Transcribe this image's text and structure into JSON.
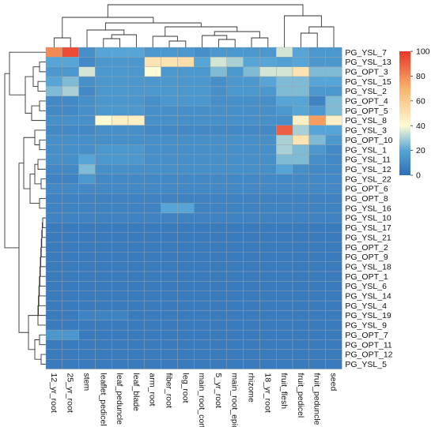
{
  "chart_data": {
    "type": "heatmap",
    "title": "",
    "columns": [
      "12_yr_root",
      "25_yr_root",
      "stem",
      "leaflet_pedicel",
      "leaf_peduncle",
      "leaf_blade",
      "arm_root",
      "fiber_root",
      "leg_root",
      "main_root_cortex",
      "5_yr_root",
      "main_root_epiderm",
      "rhizome",
      "18_yr_root",
      "fruit_flesh",
      "fruit_pedicel",
      "fruit_peduncle",
      "seed"
    ],
    "rows": [
      "PG_YSL_7",
      "PG_YSL_13",
      "PG_OPT_3",
      "PG_YSL_15",
      "PG_YSL_2",
      "PG_OPT_4",
      "PG_OPT_5",
      "PG_YSL_8",
      "PG_YSL_3",
      "PG_OPT_10",
      "PG_YSL_1",
      "PG_YSL_11",
      "PG_YSL_12",
      "PG_YSL_22",
      "PG_OPT_6",
      "PG_OPT_8",
      "PG_YSL_16",
      "PG_YSL_10",
      "PG_YSL_17",
      "PG_YSL_21",
      "PG_OPT_2",
      "PG_OPT_9",
      "PG_YSL_18",
      "PG_OPT_1",
      "PG_YSL_6",
      "PG_YSL_14",
      "PG_YSL_4",
      "PG_YSL_19",
      "PG_YSL_9",
      "PG_OPT_7",
      "PG_OPT_11",
      "PG_OPT_12",
      "PG_YSL_5"
    ],
    "values": [
      [
        80,
        95,
        12,
        20,
        20,
        20,
        15,
        15,
        15,
        12,
        15,
        15,
        15,
        15,
        35,
        20,
        15,
        15
      ],
      [
        20,
        20,
        10,
        15,
        15,
        15,
        50,
        50,
        52,
        20,
        35,
        30,
        20,
        20,
        18,
        20,
        15,
        15
      ],
      [
        15,
        15,
        35,
        15,
        15,
        15,
        40,
        15,
        15,
        15,
        25,
        15,
        25,
        35,
        35,
        50,
        25,
        25
      ],
      [
        20,
        25,
        12,
        15,
        15,
        15,
        15,
        15,
        15,
        15,
        12,
        15,
        15,
        20,
        25,
        25,
        20,
        20
      ],
      [
        25,
        30,
        10,
        15,
        15,
        15,
        15,
        15,
        15,
        15,
        12,
        15,
        15,
        15,
        25,
        25,
        15,
        15
      ],
      [
        10,
        10,
        12,
        15,
        15,
        15,
        12,
        15,
        15,
        15,
        12,
        12,
        12,
        12,
        20,
        20,
        8,
        25
      ],
      [
        10,
        10,
        12,
        15,
        15,
        15,
        12,
        12,
        12,
        12,
        12,
        12,
        12,
        12,
        15,
        20,
        15,
        25
      ],
      [
        12,
        12,
        12,
        40,
        45,
        45,
        12,
        12,
        12,
        12,
        12,
        12,
        12,
        12,
        12,
        45,
        75,
        45
      ],
      [
        10,
        10,
        10,
        12,
        12,
        12,
        10,
        10,
        10,
        10,
        10,
        10,
        10,
        10,
        90,
        30,
        20,
        20
      ],
      [
        12,
        12,
        12,
        12,
        12,
        12,
        12,
        12,
        12,
        12,
        12,
        12,
        12,
        12,
        30,
        50,
        25,
        15
      ],
      [
        12,
        12,
        12,
        15,
        15,
        15,
        12,
        12,
        12,
        12,
        12,
        12,
        12,
        12,
        30,
        25,
        15,
        10
      ],
      [
        12,
        12,
        20,
        15,
        15,
        15,
        12,
        12,
        12,
        12,
        12,
        12,
        12,
        12,
        25,
        25,
        12,
        10
      ],
      [
        10,
        10,
        25,
        12,
        12,
        12,
        12,
        12,
        12,
        12,
        12,
        12,
        12,
        12,
        20,
        12,
        10,
        10
      ],
      [
        8,
        8,
        15,
        10,
        10,
        10,
        10,
        10,
        10,
        10,
        10,
        10,
        10,
        10,
        10,
        10,
        10,
        10
      ],
      [
        10,
        10,
        10,
        10,
        10,
        10,
        10,
        10,
        10,
        10,
        10,
        10,
        10,
        10,
        10,
        10,
        10,
        10
      ],
      [
        8,
        8,
        8,
        8,
        8,
        8,
        8,
        8,
        8,
        8,
        8,
        8,
        8,
        8,
        8,
        8,
        8,
        8
      ],
      [
        8,
        8,
        8,
        8,
        8,
        8,
        8,
        20,
        20,
        8,
        8,
        8,
        8,
        8,
        8,
        8,
        8,
        8
      ],
      [
        8,
        8,
        8,
        8,
        8,
        8,
        8,
        8,
        8,
        8,
        8,
        8,
        8,
        8,
        8,
        8,
        8,
        8
      ],
      [
        5,
        5,
        5,
        5,
        5,
        5,
        5,
        5,
        5,
        5,
        5,
        5,
        5,
        5,
        5,
        5,
        5,
        5
      ],
      [
        5,
        5,
        5,
        5,
        5,
        5,
        5,
        5,
        5,
        5,
        5,
        5,
        5,
        5,
        5,
        5,
        5,
        5
      ],
      [
        5,
        5,
        5,
        5,
        5,
        5,
        5,
        5,
        5,
        5,
        5,
        5,
        5,
        5,
        5,
        5,
        5,
        5
      ],
      [
        5,
        5,
        5,
        5,
        5,
        5,
        5,
        5,
        5,
        5,
        5,
        5,
        5,
        5,
        5,
        5,
        5,
        5
      ],
      [
        5,
        5,
        5,
        5,
        5,
        5,
        5,
        5,
        5,
        5,
        5,
        5,
        5,
        5,
        5,
        5,
        5,
        5
      ],
      [
        5,
        5,
        5,
        5,
        5,
        5,
        5,
        5,
        5,
        5,
        5,
        5,
        5,
        5,
        5,
        5,
        5,
        5
      ],
      [
        5,
        5,
        5,
        5,
        5,
        5,
        5,
        5,
        5,
        5,
        5,
        5,
        5,
        5,
        5,
        5,
        5,
        5
      ],
      [
        5,
        5,
        5,
        5,
        5,
        5,
        5,
        5,
        5,
        5,
        5,
        5,
        5,
        5,
        5,
        5,
        5,
        5
      ],
      [
        5,
        5,
        5,
        5,
        5,
        5,
        5,
        5,
        5,
        5,
        5,
        5,
        5,
        5,
        5,
        5,
        5,
        5
      ],
      [
        5,
        5,
        8,
        8,
        8,
        5,
        5,
        5,
        5,
        5,
        5,
        5,
        5,
        5,
        5,
        5,
        5,
        5
      ],
      [
        5,
        5,
        5,
        5,
        5,
        5,
        5,
        5,
        5,
        5,
        5,
        5,
        5,
        5,
        5,
        5,
        5,
        5
      ],
      [
        15,
        15,
        5,
        5,
        5,
        5,
        5,
        5,
        5,
        5,
        5,
        5,
        5,
        5,
        5,
        5,
        5,
        5
      ],
      [
        5,
        5,
        5,
        5,
        5,
        5,
        5,
        5,
        5,
        5,
        5,
        5,
        5,
        5,
        5,
        5,
        5,
        5
      ],
      [
        5,
        5,
        5,
        5,
        5,
        5,
        5,
        5,
        5,
        5,
        5,
        5,
        5,
        5,
        5,
        5,
        5,
        5
      ],
      [
        5,
        5,
        5,
        5,
        5,
        5,
        5,
        5,
        5,
        5,
        5,
        5,
        5,
        5,
        5,
        5,
        5,
        5
      ]
    ],
    "scale": {
      "min": 0,
      "max": 100,
      "ticks": [
        0,
        20,
        40,
        60,
        80,
        100
      ]
    },
    "colors": {
      "low": "#2f6db5",
      "mid_low": "#56a5d6",
      "mid": "#fdfbd6",
      "mid_high": "#f8b36a",
      "high": "#e8352b",
      "grid": "#9aa3a8",
      "tree": "#333333"
    },
    "dendrogram": {
      "rows": "left",
      "columns": "top"
    },
    "legend": {
      "position": "right"
    },
    "grid": true
  }
}
